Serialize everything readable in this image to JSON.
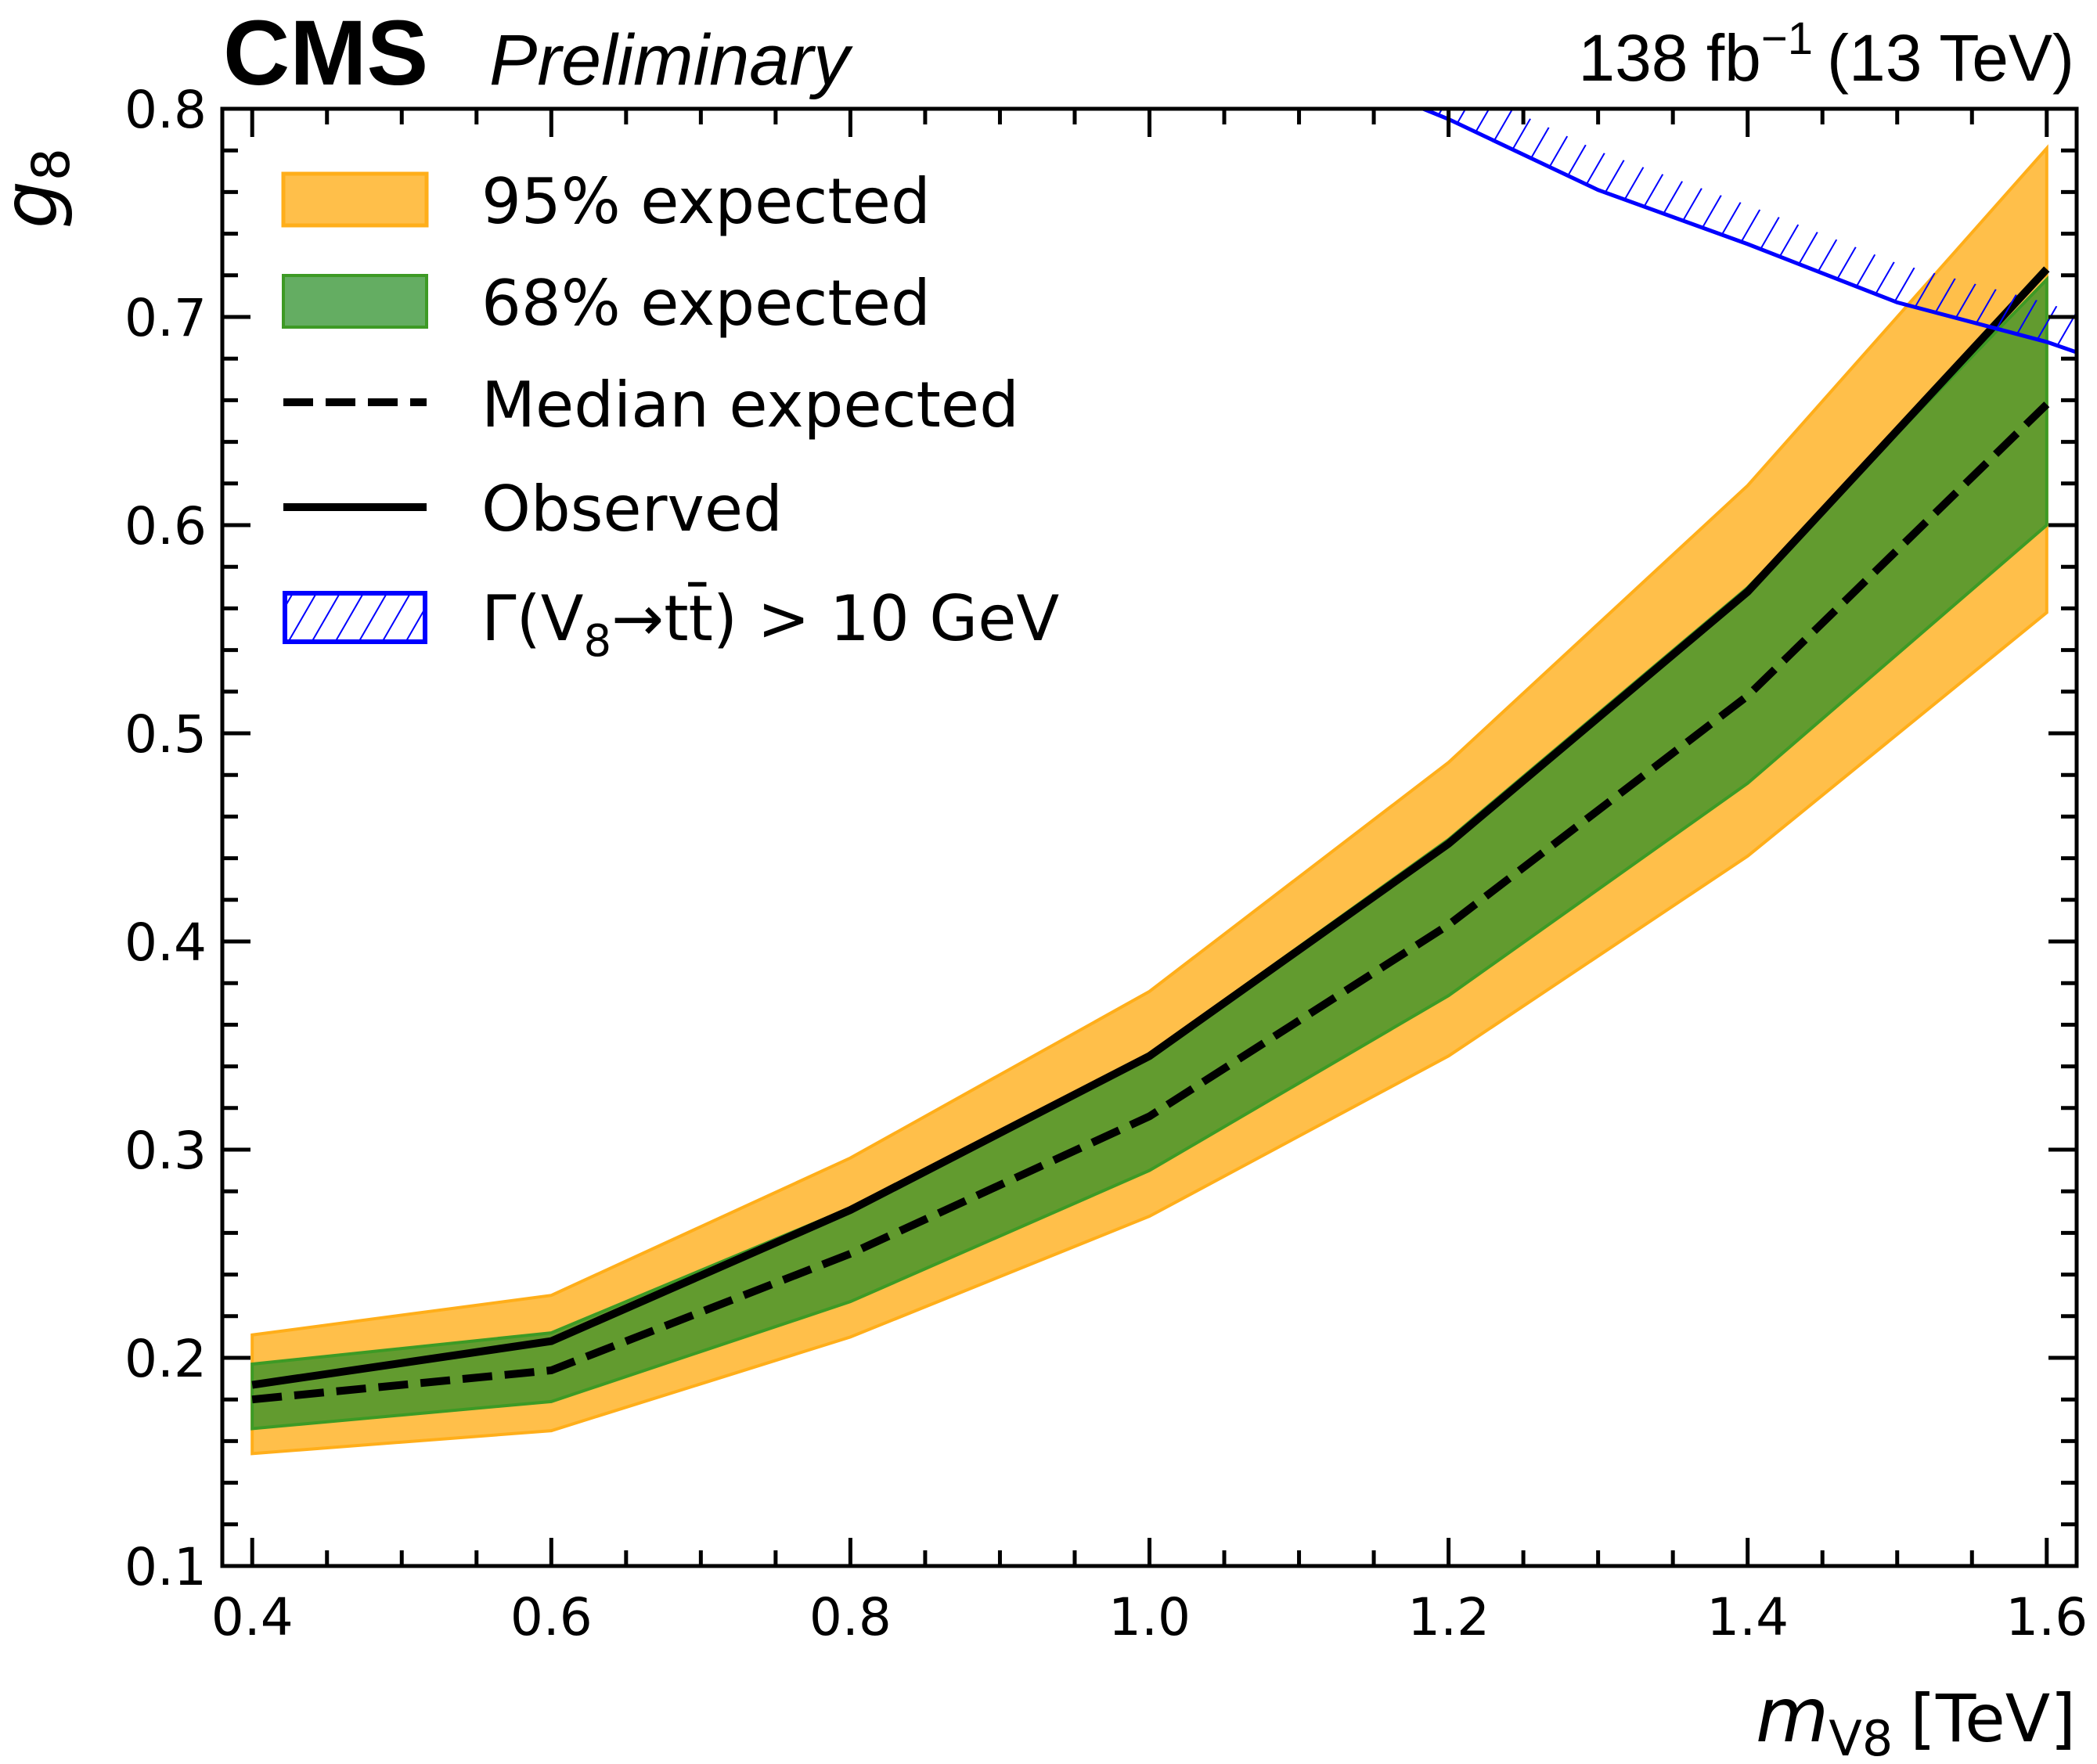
{
  "header": {
    "experiment": "CMS",
    "status": "Preliminary",
    "lumi_main": "138 fb",
    "lumi_sup": "−1",
    "lumi_energy": "(13 TeV)"
  },
  "colors": {
    "band95_fill": "#ffbf4a",
    "band95_edge": "#ffae1a",
    "band68_fill": "#629b2f",
    "band68_edge": "#3d9a25",
    "band68_legend_fill": "#64ad62",
    "line": "#000000",
    "hatch": "#0000ff"
  },
  "chart_data": {
    "type": "line",
    "title": "",
    "xlabel": "m_V8 [TeV]",
    "xlabel_main": "m",
    "xlabel_sub": "V8",
    "xlabel_unit": "[TeV]",
    "ylabel": "g8",
    "ylabel_main": "g",
    "ylabel_sub": "8",
    "xlim": [
      0.38,
      1.62
    ],
    "ylim": [
      0.1,
      0.8
    ],
    "x_ticks": [
      0.4,
      0.6,
      0.8,
      1.0,
      1.2,
      1.4,
      1.6
    ],
    "x_tick_labels": [
      "0.4",
      "0.6",
      "0.8",
      "1.0",
      "1.2",
      "1.4",
      "1.6"
    ],
    "x_minor_step": 0.05,
    "y_ticks": [
      0.1,
      0.2,
      0.3,
      0.4,
      0.5,
      0.6,
      0.7,
      0.8
    ],
    "y_tick_labels": [
      "0.1",
      "0.2",
      "0.3",
      "0.4",
      "0.5",
      "0.6",
      "0.7",
      "0.8"
    ],
    "y_minor_step": 0.02,
    "grid": false,
    "legend_position": "top-left",
    "x": [
      0.4,
      0.6,
      0.8,
      1.0,
      1.2,
      1.4,
      1.6
    ],
    "series": [
      {
        "name": "95% expected",
        "kind": "band",
        "lower": [
          0.154,
          0.165,
          0.21,
          0.268,
          0.345,
          0.441,
          0.558
        ],
        "upper": [
          0.211,
          0.23,
          0.296,
          0.376,
          0.486,
          0.619,
          0.781
        ]
      },
      {
        "name": "68% expected",
        "kind": "band",
        "lower": [
          0.166,
          0.179,
          0.227,
          0.29,
          0.374,
          0.476,
          0.6
        ],
        "upper": [
          0.197,
          0.212,
          0.272,
          0.346,
          0.449,
          0.57,
          0.718
        ]
      },
      {
        "name": "Median expected",
        "kind": "dashed",
        "values": [
          0.18,
          0.194,
          0.25,
          0.316,
          0.408,
          0.518,
          0.658
        ]
      },
      {
        "name": "Observed",
        "kind": "solid",
        "values": [
          0.187,
          0.208,
          0.271,
          0.345,
          0.447,
          0.568,
          0.723
        ]
      },
      {
        "name": "Γ(V8→tt̄) > 10 GeV",
        "kind": "hatched-exclusion",
        "x": [
          1.183,
          1.2,
          1.3,
          1.4,
          1.5,
          1.6,
          1.62
        ],
        "values": [
          0.8,
          0.795,
          0.761,
          0.735,
          0.707,
          0.688,
          0.683
        ]
      }
    ],
    "legend": [
      {
        "label": "95% expected",
        "kind": "band95"
      },
      {
        "label": "68% expected",
        "kind": "band68"
      },
      {
        "label": "Median expected",
        "kind": "dashed"
      },
      {
        "label": "Observed",
        "kind": "solid"
      },
      {
        "label_pre": "Γ(V",
        "label_sub": "8",
        "label_post": "→tt̄) > 10 GeV",
        "kind": "hatch"
      }
    ]
  }
}
